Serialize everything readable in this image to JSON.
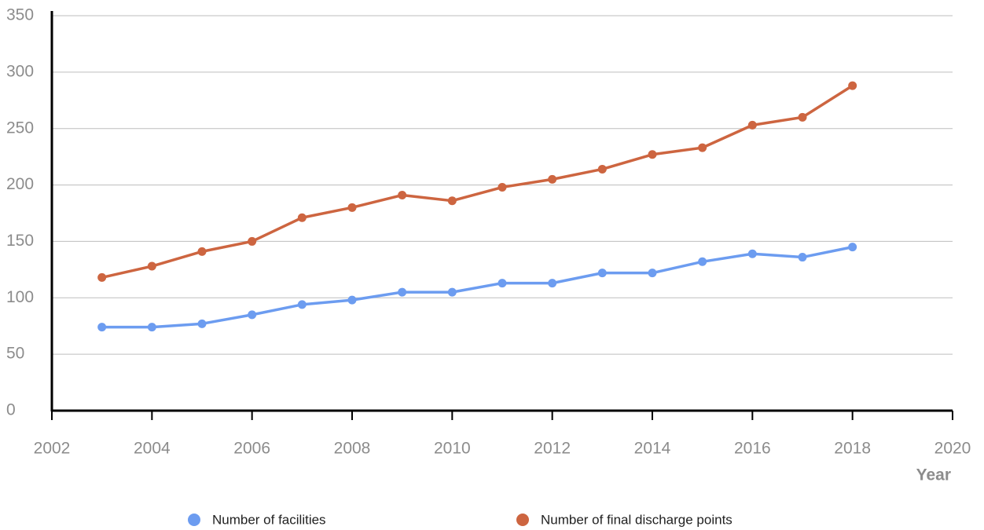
{
  "chart_data": {
    "type": "line",
    "x": [
      2003,
      2004,
      2005,
      2006,
      2007,
      2008,
      2009,
      2010,
      2011,
      2012,
      2013,
      2014,
      2015,
      2016,
      2017,
      2018
    ],
    "series": [
      {
        "name": "Number of facilities",
        "color": "#6c9cf0",
        "values": [
          74,
          74,
          77,
          85,
          94,
          98,
          105,
          105,
          113,
          113,
          122,
          122,
          132,
          139,
          136,
          145
        ]
      },
      {
        "name": "Number of final discharge points",
        "color": "#cd6540",
        "values": [
          118,
          128,
          141,
          150,
          171,
          180,
          191,
          186,
          198,
          205,
          214,
          227,
          233,
          253,
          260,
          288
        ]
      }
    ],
    "xlabel": "Year",
    "xlim": [
      2002,
      2020
    ],
    "xticks": [
      2002,
      2004,
      2006,
      2008,
      2010,
      2012,
      2014,
      2016,
      2018,
      2020
    ],
    "ylim": [
      0,
      350
    ],
    "yticks": [
      0,
      50,
      100,
      150,
      200,
      250,
      300,
      350
    ],
    "grid": true
  }
}
